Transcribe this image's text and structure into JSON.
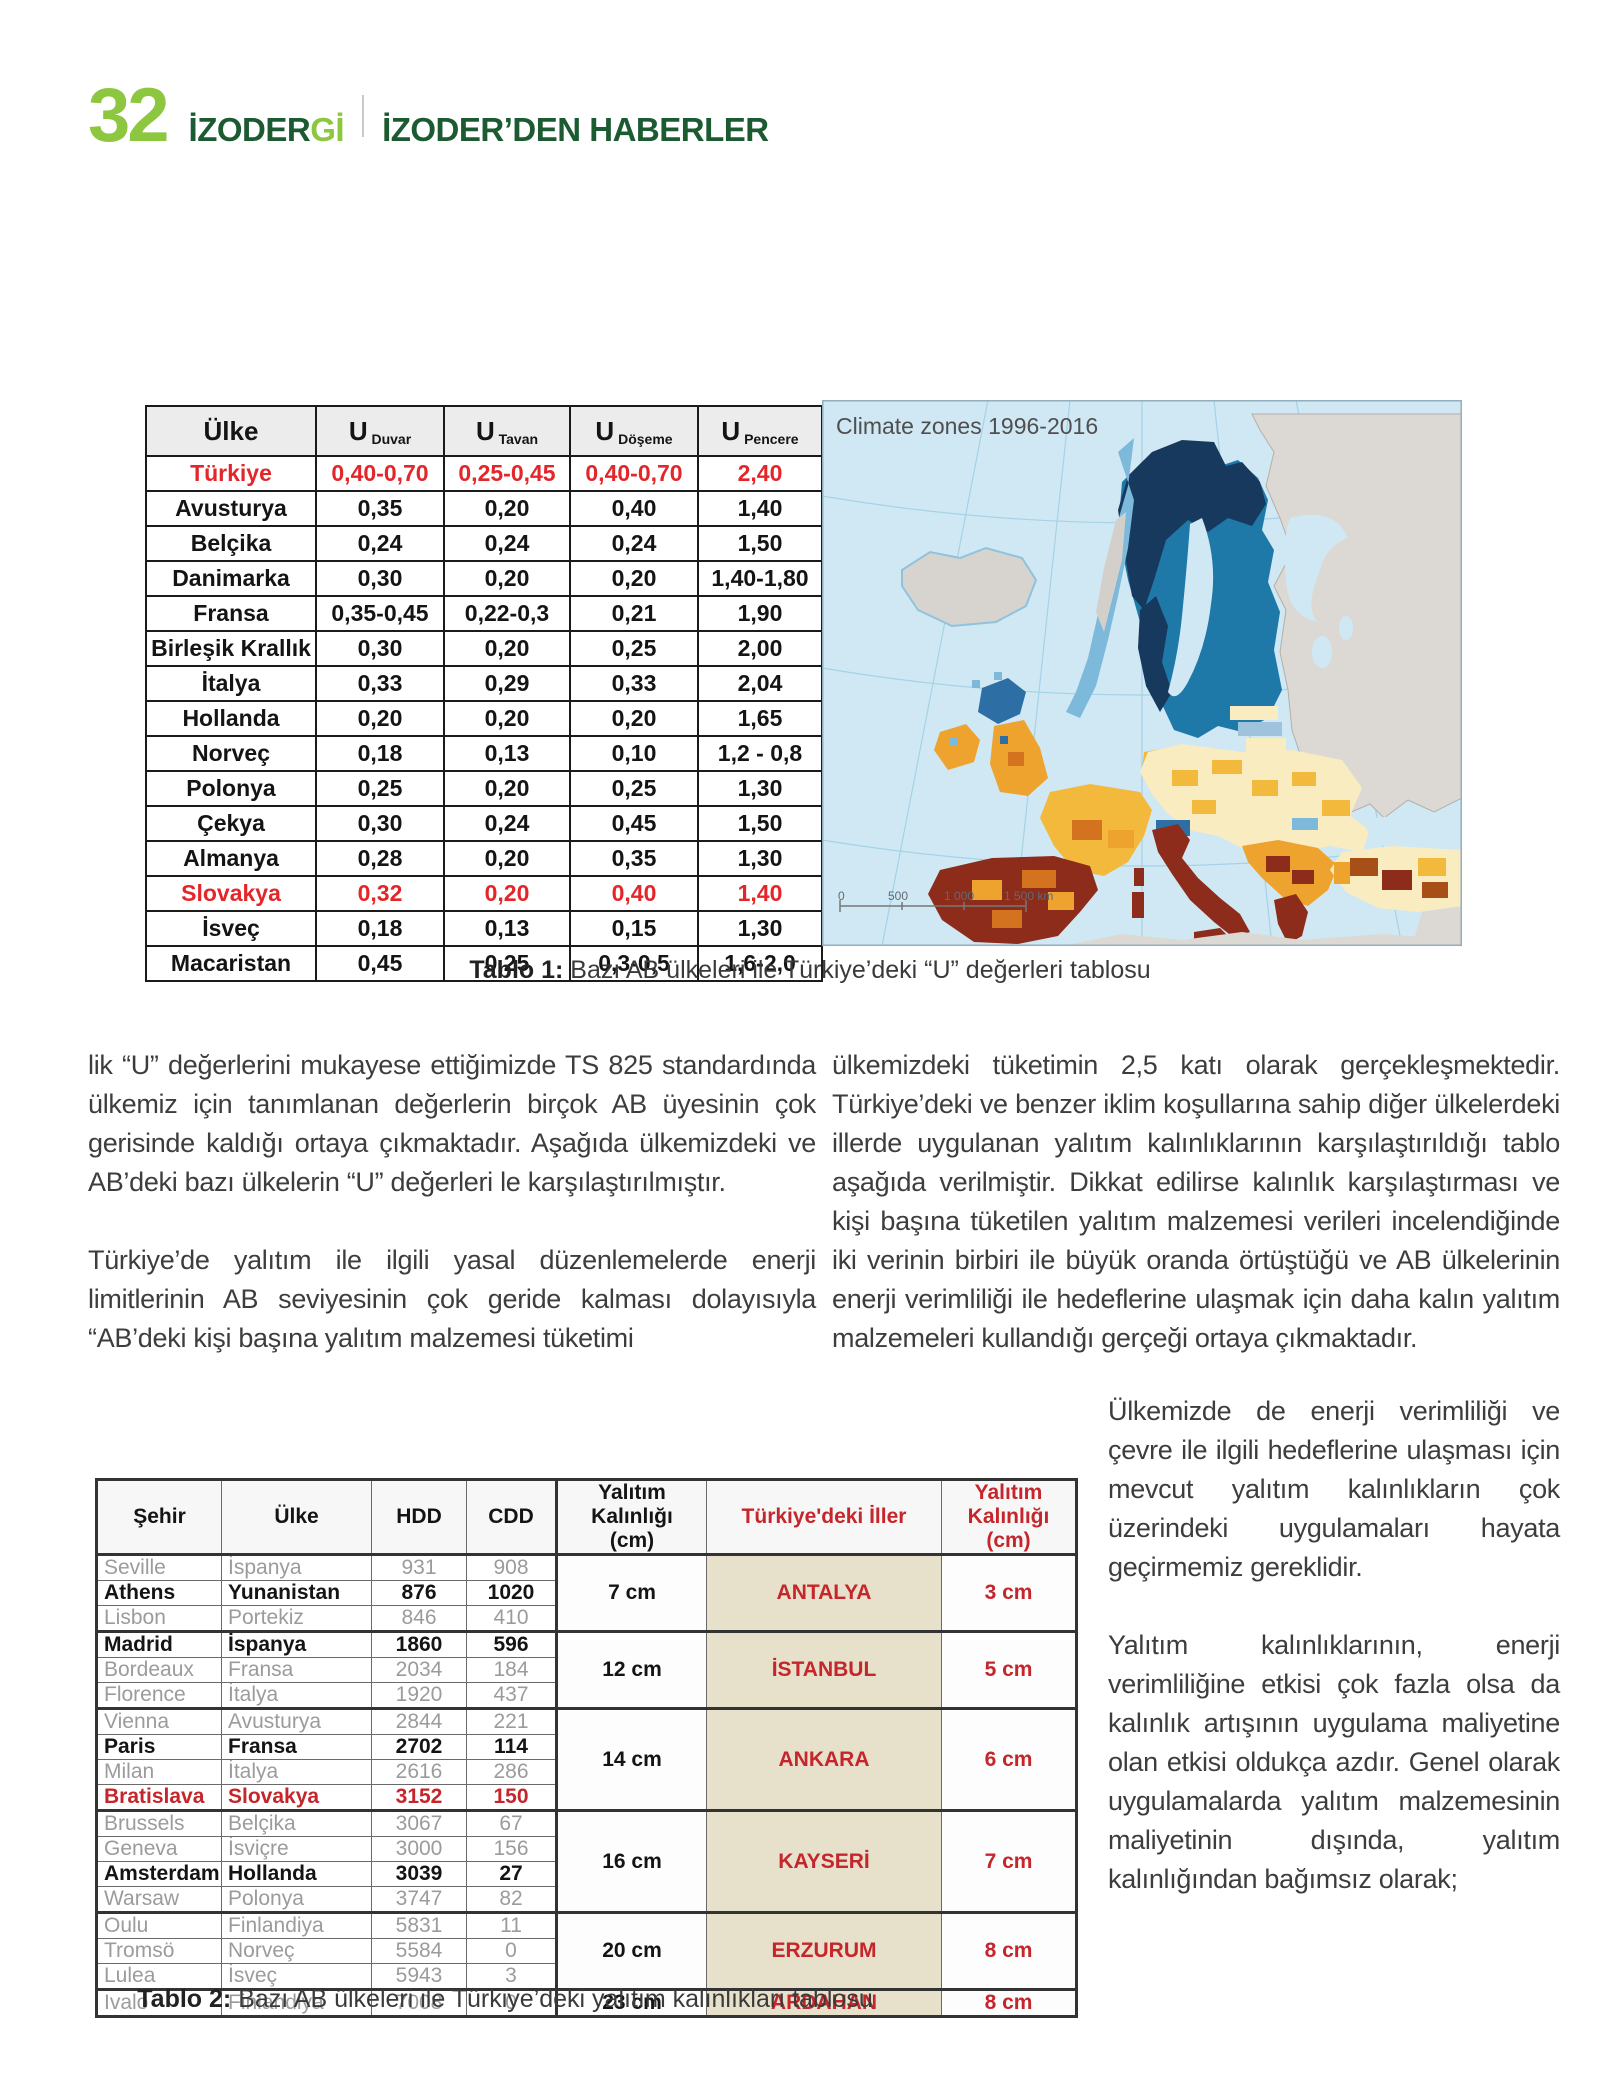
{
  "header": {
    "page_number": "32",
    "magazine": "İZODER",
    "magazine_accent": "Gİ",
    "section": "İZODER’DEN HABERLER"
  },
  "map": {
    "title": "Climate zones 1996-2016",
    "scale": [
      "0",
      "500",
      "1 000",
      "1 500 km"
    ]
  },
  "table1": {
    "headers": [
      {
        "main": "Ülke"
      },
      {
        "main": "U",
        "sub": "Duvar"
      },
      {
        "main": "U",
        "sub": "Tavan"
      },
      {
        "main": "U",
        "sub": "Döşeme"
      },
      {
        "main": "U",
        "sub": "Pencere"
      }
    ],
    "rows": [
      {
        "country": "Türkiye",
        "duvar": "0,40-0,70",
        "tavan": "0,25-0,45",
        "doseme": "0,40-0,70",
        "pencere": "2,40",
        "style": "red"
      },
      {
        "country": "Avusturya",
        "duvar": "0,35",
        "tavan": "0,20",
        "doseme": "0,40",
        "pencere": "1,40",
        "style": ""
      },
      {
        "country": "Belçika",
        "duvar": "0,24",
        "tavan": "0,24",
        "doseme": "0,24",
        "pencere": "1,50",
        "style": ""
      },
      {
        "country": "Danimarka",
        "duvar": "0,30",
        "tavan": "0,20",
        "doseme": "0,20",
        "pencere": "1,40-1,80",
        "style": ""
      },
      {
        "country": "Fransa",
        "duvar": "0,35-0,45",
        "tavan": "0,22-0,3",
        "doseme": "0,21",
        "pencere": "1,90",
        "style": ""
      },
      {
        "country": "Birleşik Krallık",
        "duvar": "0,30",
        "tavan": "0,20",
        "doseme": "0,25",
        "pencere": "2,00",
        "style": ""
      },
      {
        "country": "İtalya",
        "duvar": "0,33",
        "tavan": "0,29",
        "doseme": "0,33",
        "pencere": "2,04",
        "style": ""
      },
      {
        "country": "Hollanda",
        "duvar": "0,20",
        "tavan": "0,20",
        "doseme": "0,20",
        "pencere": "1,65",
        "style": ""
      },
      {
        "country": "Norveç",
        "duvar": "0,18",
        "tavan": "0,13",
        "doseme": "0,10",
        "pencere": "1,2 - 0,8",
        "style": ""
      },
      {
        "country": "Polonya",
        "duvar": "0,25",
        "tavan": "0,20",
        "doseme": "0,25",
        "pencere": "1,30",
        "style": ""
      },
      {
        "country": "Çekya",
        "duvar": "0,30",
        "tavan": "0,24",
        "doseme": "0,45",
        "pencere": "1,50",
        "style": ""
      },
      {
        "country": "Almanya",
        "duvar": "0,28",
        "tavan": "0,20",
        "doseme": "0,35",
        "pencere": "1,30",
        "style": ""
      },
      {
        "country": "Slovakya",
        "duvar": "0,32",
        "tavan": "0,20",
        "doseme": "0,40",
        "pencere": "1,40",
        "style": "red"
      },
      {
        "country": "İsveç",
        "duvar": "0,18",
        "tavan": "0,13",
        "doseme": "0,15",
        "pencere": "1,30",
        "style": ""
      },
      {
        "country": "Macaristan",
        "duvar": "0,45",
        "tavan": "0,25",
        "doseme": "0,3-0,5",
        "pencere": "1,6-2,0",
        "style": ""
      }
    ],
    "caption_label": "Tablo 1:",
    "caption_text": " Bazı AB ülkeleri ile Türkiye’deki “U” değerleri tablosu"
  },
  "body": {
    "left_p1": "lik “U” değerlerini mukayese ettiğimizde TS 825 standardında ülkemiz için tanımlanan değerlerin birçok AB üyesinin çok gerisinde kaldığı ortaya çıkmaktadır. Aşağıda ülkemizdeki ve AB’deki bazı ülkelerin “U” değerleri le karşılaştırılmıştır.",
    "left_p2": "Türkiye’de yalıtım ile ilgili yasal düzenlemelerde enerji limitlerinin AB seviyesinin çok geride kalması dolayısıyla “AB’deki kişi başına yalıtım malzemesi tüketimi",
    "right_p1": "ülkemizdeki tüketimin 2,5 katı olarak gerçekleşmektedir. Türkiye’deki ve benzer iklim koşullarına sahip diğer ülkelerdeki illerde uygulanan yalıtım kalınlıklarının karşılaştırıldığı tablo aşağıda verilmiştir. Dikkat edilirse kalınlık karşılaştırması ve kişi başına tüketilen yalıtım malzemesi verileri incelendiğinde iki verinin birbiri ile büyük oranda örtüştüğü ve AB ülkelerinin enerji verimliliği ile hedeflerine ulaşmak için daha kalın yalıtım malzemeleri kullandığı gerçeği ortaya çıkmaktadır.",
    "narrow_p1": "Ülkemizde de enerji verimliliği ve çevre ile ilgili hedeflerine ulaşması için mevcut yalıtım kalınlıkların çok üzerindeki uygulamaları hayata geçirmemiz gereklidir.",
    "narrow_p2": "Yalıtım kalınlıklarının, enerji verimliliğine etkisi çok fazla olsa da kalınlık artışının uygulama maliyetine olan etkisi oldukça azdır. Genel olarak uygulamalarda yalıtım malzemesinin maliyetinin dışında, yalıtım kalınlığından bağımsız olarak;"
  },
  "table2": {
    "headers": [
      {
        "label": "Şehir",
        "style": ""
      },
      {
        "label": "Ülke",
        "style": ""
      },
      {
        "label": "HDD",
        "style": ""
      },
      {
        "label": "CDD",
        "style": "cdd-edge"
      },
      {
        "label": "Yalıtım Kalınlığı\n(cm)",
        "style": ""
      },
      {
        "label": "Türkiye'deki İller",
        "style": "red"
      },
      {
        "label": "Yalıtım Kalınlığı\n(cm)",
        "style": "red"
      }
    ],
    "groups": [
      {
        "cm": "7 cm",
        "il": "ANTALYA",
        "il_cm": "3 cm",
        "rows": [
          {
            "city": "Seville",
            "country": "İspanya",
            "hdd": "931",
            "cdd": "908",
            "style": "dim"
          },
          {
            "city": "Athens",
            "country": "Yunanistan",
            "hdd": "876",
            "cdd": "1020",
            "style": "bold"
          },
          {
            "city": "Lisbon",
            "country": "Portekiz",
            "hdd": "846",
            "cdd": "410",
            "style": "dim"
          }
        ]
      },
      {
        "cm": "12 cm",
        "il": "İSTANBUL",
        "il_cm": "5 cm",
        "rows": [
          {
            "city": "Madrid",
            "country": "İspanya",
            "hdd": "1860",
            "cdd": "596",
            "style": "bold"
          },
          {
            "city": "Bordeaux",
            "country": "Fransa",
            "hdd": "2034",
            "cdd": "184",
            "style": "dim"
          },
          {
            "city": "Florence",
            "country": "İtalya",
            "hdd": "1920",
            "cdd": "437",
            "style": "dim"
          }
        ]
      },
      {
        "cm": "14 cm",
        "il": "ANKARA",
        "il_cm": "6 cm",
        "rows": [
          {
            "city": "Vienna",
            "country": "Avusturya",
            "hdd": "2844",
            "cdd": "221",
            "style": "dim"
          },
          {
            "city": "Paris",
            "country": "Fransa",
            "hdd": "2702",
            "cdd": "114",
            "style": "bold"
          },
          {
            "city": "Milan",
            "country": "İtalya",
            "hdd": "2616",
            "cdd": "286",
            "style": "dim"
          },
          {
            "city": "Bratislava",
            "country": "Slovakya",
            "hdd": "3152",
            "cdd": "150",
            "style": "red"
          }
        ]
      },
      {
        "cm": "16 cm",
        "il": "KAYSERİ",
        "il_cm": "7 cm",
        "rows": [
          {
            "city": "Brussels",
            "country": "Belçika",
            "hdd": "3067",
            "cdd": "67",
            "style": "dim"
          },
          {
            "city": "Geneva",
            "country": "İsviçre",
            "hdd": "3000",
            "cdd": "156",
            "style": "dim"
          },
          {
            "city": "Amsterdam",
            "country": "Hollanda",
            "hdd": "3039",
            "cdd": "27",
            "style": "bold"
          },
          {
            "city": "Warsaw",
            "country": "Polonya",
            "hdd": "3747",
            "cdd": "82",
            "style": "dim"
          }
        ]
      },
      {
        "cm": "20 cm",
        "il": "ERZURUM",
        "il_cm": "8 cm",
        "rows": [
          {
            "city": "Oulu",
            "country": "Finlandiya",
            "hdd": "5831",
            "cdd": "11",
            "style": "dim"
          },
          {
            "city": "Tromsö",
            "country": "Norveç",
            "hdd": "5584",
            "cdd": "0",
            "style": "dim"
          },
          {
            "city": "Lulea",
            "country": "İsveç",
            "hdd": "5943",
            "cdd": "3",
            "style": "dim"
          }
        ]
      },
      {
        "cm": "23 cm",
        "il": "ARDAHAN",
        "il_cm": "8 cm",
        "rows": [
          {
            "city": "Ivalo",
            "country": "Finlandiya",
            "hdd": "7008",
            "cdd": "0",
            "style": "dim"
          }
        ]
      }
    ],
    "caption_label": "Tablo 2:",
    "caption_text": " Bazı AB ülkeleri ile Türkiye’deki yalıtım kalınlıkları tablosu"
  }
}
